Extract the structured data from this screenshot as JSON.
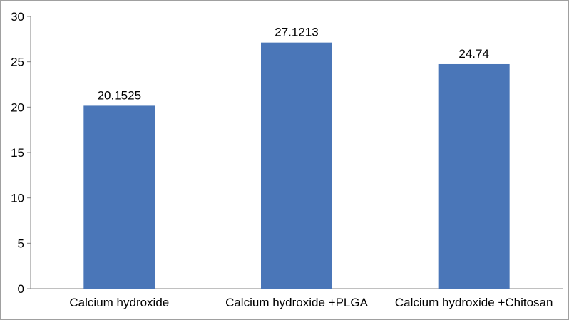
{
  "chart_data": {
    "type": "bar",
    "categories": [
      "Calcium hydroxide",
      "Calcium hydroxide +PLGA",
      "Calcium hydroxide +Chitosan"
    ],
    "values": [
      20.1525,
      27.1213,
      24.74
    ],
    "data_labels": [
      "20.1525",
      "27.1213",
      "24.74"
    ],
    "title": "",
    "xlabel": "",
    "ylabel": "",
    "ylim": [
      0,
      30
    ],
    "yticks": [
      "0",
      "5",
      "10",
      "15",
      "20",
      "25",
      "30"
    ],
    "grid": false,
    "legend": "none",
    "bar_color": "#4a76b8"
  }
}
